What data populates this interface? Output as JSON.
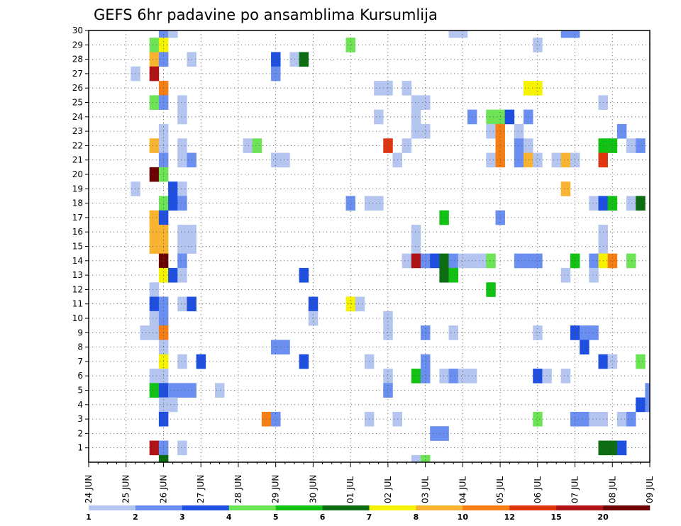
{
  "chart_data": {
    "type": "heatmap",
    "title": "GEFS 6hr padavine po ansamblima Kursumlija",
    "xlabel": "",
    "ylabel": "",
    "x_ticks": [
      "24 JUN",
      "25 JUN",
      "26 JUN",
      "27 JUN",
      "28 JUN",
      "29 JUN",
      "30 JUN",
      "01 JUL",
      "02 JUL",
      "03 JUL",
      "04 JUL",
      "05 JUL",
      "06 JUL",
      "07 JUL",
      "08 JUL",
      "09 JUL"
    ],
    "y_range": [
      0,
      30
    ],
    "y_ticks": [
      1,
      2,
      3,
      4,
      5,
      6,
      7,
      8,
      9,
      10,
      11,
      12,
      13,
      14,
      15,
      16,
      17,
      18,
      19,
      20,
      21,
      22,
      23,
      24,
      25,
      26,
      27,
      28,
      29,
      30
    ],
    "grid": true,
    "x_step_hours": 6,
    "legend": {
      "placement": "bottom",
      "colors": [
        "#b4c6ef",
        "#6a8ff0",
        "#1f4fe0",
        "#6ce456",
        "#11c113",
        "#0c6d12",
        "#f5f300",
        "#f8b431",
        "#f57f14",
        "#e03511",
        "#b01315",
        "#6b0303"
      ],
      "labels": [
        "1",
        "2",
        "3",
        "4",
        "5",
        "6",
        "7",
        "8",
        "10",
        "12",
        "15",
        "20"
      ]
    },
    "cells": [
      [
        8,
        30,
        1
      ],
      [
        9,
        30,
        0
      ],
      [
        39,
        30,
        0
      ],
      [
        40,
        30,
        0
      ],
      [
        51,
        30,
        1
      ],
      [
        52,
        30,
        1
      ],
      [
        7,
        29,
        3
      ],
      [
        8,
        29,
        6
      ],
      [
        28,
        29,
        3
      ],
      [
        48,
        29,
        0
      ],
      [
        7,
        28,
        7
      ],
      [
        8,
        28,
        1
      ],
      [
        11,
        28,
        0
      ],
      [
        20,
        28,
        2
      ],
      [
        22,
        28,
        0
      ],
      [
        23,
        28,
        5
      ],
      [
        5,
        27,
        0
      ],
      [
        7,
        27,
        10
      ],
      [
        20,
        27,
        1
      ],
      [
        8,
        26,
        8
      ],
      [
        31,
        26,
        0
      ],
      [
        32,
        26,
        0
      ],
      [
        34,
        26,
        0
      ],
      [
        47,
        26,
        6
      ],
      [
        48,
        26,
        6
      ],
      [
        7,
        25,
        3
      ],
      [
        8,
        25,
        1
      ],
      [
        10,
        25,
        0
      ],
      [
        35,
        25,
        0
      ],
      [
        36,
        25,
        0
      ],
      [
        55,
        25,
        0
      ],
      [
        10,
        24,
        0
      ],
      [
        31,
        24,
        0
      ],
      [
        35,
        24,
        0
      ],
      [
        41,
        24,
        1
      ],
      [
        43,
        24,
        3
      ],
      [
        44,
        24,
        3
      ],
      [
        45,
        24,
        2
      ],
      [
        47,
        24,
        1
      ],
      [
        8,
        23,
        0
      ],
      [
        35,
        23,
        0
      ],
      [
        36,
        23,
        0
      ],
      [
        43,
        23,
        0
      ],
      [
        44,
        23,
        8
      ],
      [
        46,
        23,
        0
      ],
      [
        57,
        23,
        1
      ],
      [
        7,
        22,
        7
      ],
      [
        8,
        22,
        0
      ],
      [
        10,
        22,
        0
      ],
      [
        17,
        22,
        0
      ],
      [
        18,
        22,
        3
      ],
      [
        32,
        22,
        9
      ],
      [
        34,
        22,
        0
      ],
      [
        44,
        22,
        8
      ],
      [
        46,
        22,
        1
      ],
      [
        47,
        22,
        0
      ],
      [
        55,
        22,
        4
      ],
      [
        56,
        22,
        4
      ],
      [
        58,
        22,
        0
      ],
      [
        59,
        22,
        1
      ],
      [
        8,
        21,
        1
      ],
      [
        10,
        21,
        0
      ],
      [
        11,
        21,
        1
      ],
      [
        20,
        21,
        0
      ],
      [
        21,
        21,
        0
      ],
      [
        33,
        21,
        0
      ],
      [
        43,
        21,
        0
      ],
      [
        44,
        21,
        8
      ],
      [
        46,
        21,
        1
      ],
      [
        47,
        21,
        7
      ],
      [
        48,
        21,
        0
      ],
      [
        50,
        21,
        0
      ],
      [
        51,
        21,
        7
      ],
      [
        52,
        21,
        0
      ],
      [
        55,
        21,
        9
      ],
      [
        7,
        20,
        11
      ],
      [
        8,
        20,
        3
      ],
      [
        5,
        19,
        0
      ],
      [
        9,
        19,
        2
      ],
      [
        10,
        19,
        0
      ],
      [
        51,
        19,
        7
      ],
      [
        8,
        18,
        3
      ],
      [
        9,
        18,
        2
      ],
      [
        10,
        18,
        1
      ],
      [
        28,
        18,
        1
      ],
      [
        30,
        18,
        0
      ],
      [
        31,
        18,
        0
      ],
      [
        54,
        18,
        0
      ],
      [
        55,
        18,
        2
      ],
      [
        56,
        18,
        4
      ],
      [
        58,
        18,
        0
      ],
      [
        59,
        18,
        5
      ],
      [
        7,
        17,
        7
      ],
      [
        8,
        17,
        2
      ],
      [
        38,
        17,
        4
      ],
      [
        44,
        17,
        1
      ],
      [
        7,
        16,
        7
      ],
      [
        8,
        16,
        7
      ],
      [
        10,
        16,
        0
      ],
      [
        11,
        16,
        0
      ],
      [
        35,
        16,
        0
      ],
      [
        55,
        16,
        0
      ],
      [
        7,
        15,
        7
      ],
      [
        8,
        15,
        7
      ],
      [
        10,
        15,
        0
      ],
      [
        11,
        15,
        0
      ],
      [
        35,
        15,
        0
      ],
      [
        55,
        15,
        0
      ],
      [
        8,
        14,
        11
      ],
      [
        10,
        14,
        1
      ],
      [
        34,
        14,
        0
      ],
      [
        35,
        14,
        10
      ],
      [
        36,
        14,
        1
      ],
      [
        37,
        14,
        2
      ],
      [
        38,
        14,
        5
      ],
      [
        39,
        14,
        1
      ],
      [
        40,
        14,
        0
      ],
      [
        41,
        14,
        0
      ],
      [
        42,
        14,
        0
      ],
      [
        43,
        14,
        3
      ],
      [
        46,
        14,
        1
      ],
      [
        47,
        14,
        1
      ],
      [
        48,
        14,
        1
      ],
      [
        52,
        14,
        4
      ],
      [
        54,
        14,
        1
      ],
      [
        55,
        14,
        6
      ],
      [
        56,
        14,
        8
      ],
      [
        58,
        14,
        3
      ],
      [
        8,
        13,
        6
      ],
      [
        9,
        13,
        2
      ],
      [
        10,
        13,
        0
      ],
      [
        23,
        13,
        2
      ],
      [
        38,
        13,
        5
      ],
      [
        39,
        13,
        4
      ],
      [
        51,
        13,
        0
      ],
      [
        54,
        13,
        0
      ],
      [
        7,
        12,
        0
      ],
      [
        43,
        12,
        4
      ],
      [
        7,
        11,
        2
      ],
      [
        8,
        11,
        1
      ],
      [
        10,
        11,
        0
      ],
      [
        11,
        11,
        2
      ],
      [
        24,
        11,
        2
      ],
      [
        28,
        11,
        6
      ],
      [
        29,
        11,
        0
      ],
      [
        7,
        10,
        0
      ],
      [
        8,
        10,
        1
      ],
      [
        24,
        10,
        0
      ],
      [
        32,
        10,
        0
      ],
      [
        6,
        9,
        0
      ],
      [
        7,
        9,
        0
      ],
      [
        8,
        9,
        8
      ],
      [
        32,
        9,
        0
      ],
      [
        36,
        9,
        1
      ],
      [
        39,
        9,
        0
      ],
      [
        48,
        9,
        0
      ],
      [
        52,
        9,
        2
      ],
      [
        53,
        9,
        1
      ],
      [
        54,
        9,
        1
      ],
      [
        8,
        8,
        0
      ],
      [
        20,
        8,
        1
      ],
      [
        21,
        8,
        1
      ],
      [
        53,
        8,
        2
      ],
      [
        8,
        7,
        6
      ],
      [
        10,
        7,
        0
      ],
      [
        12,
        7,
        2
      ],
      [
        23,
        7,
        2
      ],
      [
        30,
        7,
        0
      ],
      [
        36,
        7,
        1
      ],
      [
        55,
        7,
        2
      ],
      [
        56,
        7,
        0
      ],
      [
        59,
        7,
        3
      ],
      [
        7,
        6,
        0
      ],
      [
        8,
        6,
        0
      ],
      [
        32,
        6,
        0
      ],
      [
        35,
        6,
        4
      ],
      [
        36,
        6,
        1
      ],
      [
        38,
        6,
        0
      ],
      [
        39,
        6,
        1
      ],
      [
        40,
        6,
        0
      ],
      [
        41,
        6,
        0
      ],
      [
        48,
        6,
        2
      ],
      [
        49,
        6,
        0
      ],
      [
        51,
        6,
        0
      ],
      [
        7,
        5,
        4
      ],
      [
        8,
        5,
        2
      ],
      [
        9,
        5,
        1
      ],
      [
        10,
        5,
        1
      ],
      [
        11,
        5,
        1
      ],
      [
        14,
        5,
        0
      ],
      [
        32,
        5,
        1
      ],
      [
        60,
        5,
        1
      ],
      [
        8,
        4,
        0
      ],
      [
        9,
        4,
        0
      ],
      [
        59,
        4,
        2
      ],
      [
        60,
        4,
        1
      ],
      [
        8,
        3,
        2
      ],
      [
        19,
        3,
        8
      ],
      [
        20,
        3,
        1
      ],
      [
        30,
        3,
        0
      ],
      [
        33,
        3,
        0
      ],
      [
        48,
        3,
        3
      ],
      [
        52,
        3,
        1
      ],
      [
        53,
        3,
        1
      ],
      [
        54,
        3,
        0
      ],
      [
        55,
        3,
        0
      ],
      [
        57,
        3,
        0
      ],
      [
        58,
        3,
        1
      ],
      [
        37,
        2,
        1
      ],
      [
        38,
        2,
        1
      ],
      [
        7,
        1,
        10
      ],
      [
        8,
        1,
        1
      ],
      [
        10,
        1,
        0
      ],
      [
        55,
        1,
        5
      ],
      [
        56,
        1,
        5
      ],
      [
        57,
        1,
        2
      ],
      [
        8,
        0,
        5
      ],
      [
        35,
        0,
        0
      ],
      [
        36,
        0,
        3
      ]
    ]
  }
}
